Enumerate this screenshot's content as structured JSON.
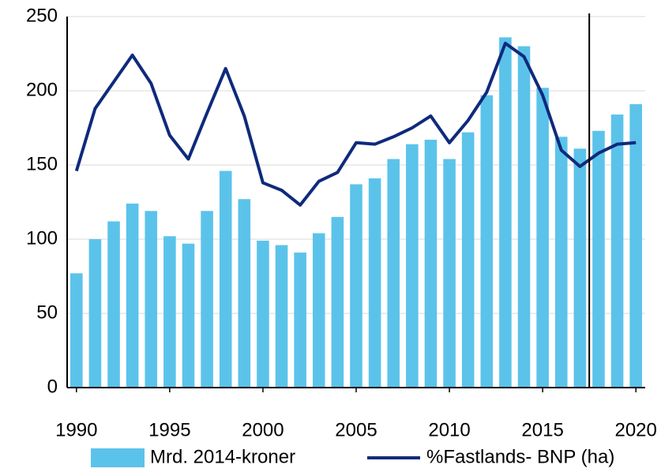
{
  "chart_data": {
    "type": "bar_line",
    "x": [
      1990,
      1991,
      1992,
      1993,
      1994,
      1995,
      1996,
      1997,
      1998,
      1999,
      2000,
      2001,
      2002,
      2003,
      2004,
      2005,
      2006,
      2007,
      2008,
      2009,
      2010,
      2011,
      2012,
      2013,
      2014,
      2015,
      2016,
      2017,
      2018,
      2019,
      2020
    ],
    "series": [
      {
        "name": "Mrd. 2014-kroner",
        "type": "bar",
        "color": "#5bc3ea",
        "values": [
          77,
          100,
          112,
          124,
          119,
          102,
          97,
          119,
          146,
          127,
          99,
          96,
          91,
          104,
          115,
          137,
          141,
          154,
          164,
          167,
          154,
          172,
          197,
          236,
          230,
          202,
          169,
          161,
          173,
          184,
          191
        ]
      },
      {
        "name": "%Fastlands- BNP (ha)",
        "type": "line",
        "color": "#0f2a7c",
        "values": [
          146,
          188,
          206,
          224,
          205,
          170,
          154,
          185,
          215,
          183,
          138,
          133,
          123,
          139,
          145,
          165,
          164,
          169,
          175,
          183,
          165,
          180,
          199,
          232,
          223,
          197,
          160,
          149,
          158,
          164,
          165
        ]
      }
    ],
    "xlim": [
      1989.5,
      2020.5
    ],
    "xticks": [
      1990,
      1995,
      2000,
      2005,
      2010,
      2015,
      2020
    ],
    "ylim": [
      0,
      250
    ],
    "yticks": [
      0,
      50,
      100,
      150,
      200,
      250
    ],
    "grid": true,
    "divider_x": 2017.5,
    "legend": "bottom"
  }
}
